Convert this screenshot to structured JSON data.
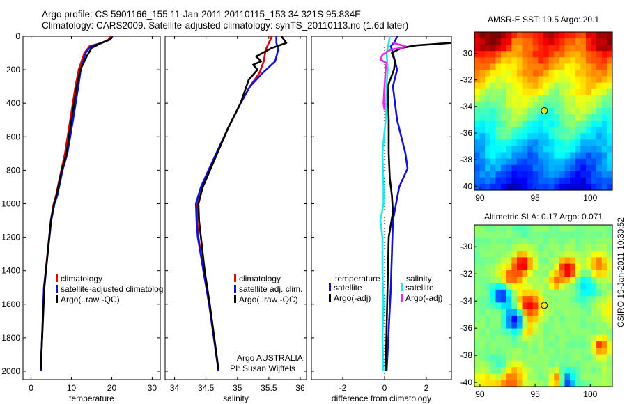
{
  "header": {
    "line1": "Argo profile: CS 5901166_155 11-Jan-2011 20110115_153 34.321S 95.834E",
    "line2": "Climatology: CARS2009. Satellite-adjusted climatology: synTS_20110113.nc (1.6d later)"
  },
  "footer_stamp": "CSIRO 19-Jan-2011 10:30:52",
  "colors": {
    "red": "#e00000",
    "blue": "#1010d8",
    "black": "#000000",
    "cyan": "#20e8e8",
    "magenta": "#f020f0"
  },
  "chart_data": [
    {
      "id": "temperature",
      "type": "line",
      "xlabel": "temperature",
      "ylabel": "",
      "xlim": [
        -2,
        32
      ],
      "ylim": [
        2050,
        0
      ],
      "y_reversed": true,
      "xticks": [
        0,
        10,
        20,
        30
      ],
      "yticks": [
        0,
        200,
        400,
        600,
        800,
        1000,
        1200,
        1400,
        1600,
        1800,
        2000
      ],
      "legend": {
        "placement": "lower-right",
        "entries": [
          "climatology",
          "satellite-adjusted climatolog",
          "Argo(..raw -QC)"
        ]
      },
      "series": [
        {
          "name": "climatology",
          "color": "red",
          "x": [
            19.6,
            19.2,
            17.5,
            14.5,
            13.2,
            11.8,
            11.0,
            9.7,
            8.4,
            7.5,
            6.2,
            5.6,
            4.9,
            3.2,
            2.4
          ],
          "y": [
            0,
            20,
            40,
            60,
            100,
            200,
            300,
            500,
            700,
            800,
            950,
            1000,
            1100,
            1500,
            2000
          ]
        },
        {
          "name": "satellite-adjusted climatolog",
          "color": "blue",
          "x": [
            20.2,
            19.5,
            17.5,
            14.8,
            13.5,
            12.3,
            11.7,
            10.4,
            9.0,
            7.8,
            6.5,
            5.8,
            5.0,
            3.2,
            2.4
          ],
          "y": [
            0,
            20,
            40,
            60,
            100,
            200,
            300,
            500,
            700,
            800,
            950,
            1000,
            1100,
            1500,
            2000
          ]
        },
        {
          "name": "Argo(..raw -QC)",
          "color": "black",
          "x": [
            20.0,
            19.6,
            17.0,
            15.0,
            13.8,
            12.2,
            11.3,
            10.0,
            8.8,
            7.6,
            6.3,
            5.7,
            4.9,
            3.3,
            2.4
          ],
          "y": [
            5,
            20,
            45,
            70,
            120,
            200,
            300,
            500,
            700,
            800,
            950,
            1000,
            1100,
            1500,
            1990
          ]
        }
      ]
    },
    {
      "id": "salinity",
      "type": "line",
      "xlabel": "salinity",
      "ylabel": "",
      "xlim": [
        33.85,
        36.1
      ],
      "ylim": [
        2050,
        0
      ],
      "y_reversed": true,
      "xticks": [
        34,
        34.5,
        35,
        35.5,
        36
      ],
      "yticks": [
        0,
        200,
        400,
        600,
        800,
        1000,
        1200,
        1400,
        1600,
        1800,
        2000
      ],
      "legend": {
        "placement": "lower-right",
        "entries": [
          "climatology",
          "satellite adj. clim.",
          "Argo(..raw -QC)"
        ]
      },
      "annotation": [
        "Argo AUSTRALIA",
        "PI: Susan Wijffels"
      ],
      "series": [
        {
          "name": "climatology",
          "color": "red",
          "x": [
            35.55,
            35.5,
            35.45,
            35.42,
            35.35,
            35.2,
            35.05,
            34.85,
            34.62,
            34.45,
            34.37,
            34.36,
            34.38,
            34.46,
            34.55,
            34.7
          ],
          "y": [
            0,
            40,
            80,
            150,
            220,
            300,
            400,
            550,
            750,
            900,
            1000,
            1100,
            1200,
            1400,
            1600,
            2000
          ]
        },
        {
          "name": "satellite adj. clim.",
          "color": "blue",
          "x": [
            35.62,
            35.62,
            35.65,
            35.6,
            35.4,
            35.2,
            35.05,
            34.85,
            34.6,
            34.42,
            34.34,
            34.35,
            34.37,
            34.46,
            34.55,
            34.7
          ],
          "y": [
            0,
            40,
            80,
            150,
            220,
            300,
            400,
            550,
            750,
            900,
            1000,
            1100,
            1200,
            1400,
            1600,
            2000
          ]
        },
        {
          "name": "Argo(..raw -QC)",
          "color": "black",
          "x": [
            35.7,
            35.78,
            35.55,
            35.3,
            35.38,
            35.25,
            35.32,
            35.18,
            35.05,
            34.85,
            34.62,
            34.45,
            34.38,
            34.39,
            34.42,
            34.48,
            34.56,
            34.7
          ],
          "y": [
            0,
            40,
            70,
            120,
            150,
            170,
            200,
            260,
            400,
            550,
            750,
            900,
            1000,
            1100,
            1200,
            1400,
            1600,
            1990
          ]
        }
      ]
    },
    {
      "id": "difference",
      "type": "line",
      "xlabel": "difference from climatology",
      "ylabel": "",
      "xlim": [
        -3.5,
        3.2
      ],
      "ylim": [
        2050,
        0
      ],
      "y_reversed": true,
      "xticks": [
        -2,
        0,
        2
      ],
      "yticks": [
        0,
        200,
        400,
        600,
        800,
        1000,
        1200,
        1400,
        1600,
        1800,
        2000
      ],
      "zero_line": "dotted",
      "legend": {
        "placement": "lower-center",
        "columns": [
          "temperature",
          "salinity"
        ],
        "entries": [
          "satellite",
          "Argo(-adj)",
          "satellite",
          "Argo(-adj)"
        ]
      },
      "series": [
        {
          "name": "temperature satellite",
          "color": "blue",
          "x": [
            0.6,
            0.5,
            0.3,
            0.4,
            0.6,
            0.4,
            0.6,
            0.8,
            1.0,
            1.1,
            0.7,
            0.4,
            0.35,
            0.3,
            0.1
          ],
          "y": [
            0,
            30,
            60,
            100,
            200,
            300,
            500,
            600,
            700,
            790,
            900,
            1100,
            1300,
            1500,
            2000
          ]
        },
        {
          "name": "temperature Argo(-adj)",
          "color": "black",
          "x": [
            3.2,
            1.5,
            0.8,
            0.35,
            0.5,
            0.45,
            0.15,
            0.2,
            0.2,
            0.25,
            0.35,
            0.4,
            0.2,
            0.05
          ],
          "y": [
            40,
            55,
            70,
            100,
            150,
            200,
            300,
            500,
            700,
            850,
            950,
            1050,
            1200,
            2000
          ]
        },
        {
          "name": "salinity satellite",
          "color": "cyan",
          "x": [
            0.25,
            0.2,
            0.1,
            0.15,
            0.1,
            0.05,
            -0.1,
            -0.05,
            -0.05,
            -0.2,
            -0.1,
            -0.1,
            -0.05,
            -0.1,
            -0.05
          ],
          "y": [
            0,
            40,
            100,
            200,
            300,
            500,
            700,
            900,
            1000,
            1100,
            1200,
            1400,
            1600,
            1800,
            2000
          ]
        },
        {
          "name": "salinity Argo(-adj)",
          "color": "magenta",
          "x": [
            0.4,
            1.0,
            0.8,
            0.3,
            -0.1,
            -0.2,
            0.1,
            0.05,
            -0.05,
            0.0
          ],
          "y": [
            40,
            60,
            70,
            80,
            110,
            140,
            160,
            200,
            400,
            440
          ]
        }
      ]
    },
    {
      "id": "amsre_sst",
      "type": "heatmap",
      "title": "AMSR-E SST: 19.5 Argo: 20.1",
      "xlim": [
        89.5,
        102
      ],
      "ylim": [
        -40.3,
        -28.4
      ],
      "xticks": [
        90,
        95,
        100
      ],
      "yticks": [
        -30,
        -32,
        -34,
        -36,
        -38,
        -40
      ],
      "argo_marker": {
        "lon": 95.834,
        "lat": -34.321
      },
      "grid": {
        "nx": 26,
        "ny": 25,
        "seed": 7,
        "field": "zonal_gradient",
        "value_range": [
          0,
          1
        ],
        "colormap": "jet"
      }
    },
    {
      "id": "altimetric_sla",
      "type": "heatmap",
      "title": "Altimetric SLA: 0.17 Argo: 0.071",
      "xlim": [
        89.5,
        102
      ],
      "ylim": [
        -40.3,
        -28.4
      ],
      "xticks": [
        90,
        95,
        100
      ],
      "yticks": [
        -30,
        -32,
        -34,
        -36,
        -38,
        -40
      ],
      "argo_marker": {
        "lon": 95.834,
        "lat": -34.321
      },
      "grid": {
        "nx": 26,
        "ny": 25,
        "seed": 3,
        "field": "eddies",
        "value_range": [
          0,
          1
        ],
        "colormap": "jet"
      }
    }
  ]
}
